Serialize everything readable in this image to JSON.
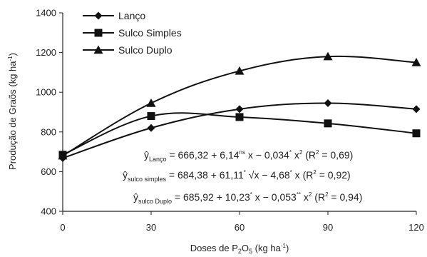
{
  "chart_data": {
    "type": "line",
    "xlabel_main": "Doses de P",
    "xlabel_sub1": "2",
    "xlabel_mid": "O",
    "xlabel_sub2": "5",
    "xlabel_unit": " (kg ha",
    "xlabel_unit_sup": "-1",
    "xlabel_close": ")",
    "ylabel_main": "Produção de Graõs (kg ha",
    "ylabel_sup": "-1",
    "ylabel_close": ")",
    "xlim": [
      0,
      120
    ],
    "ylim": [
      400,
      1400
    ],
    "xticks": [
      "0",
      "30",
      "60",
      "90",
      "120"
    ],
    "yticks": [
      "400",
      "600",
      "800",
      "1000",
      "1200",
      "1400"
    ],
    "legend_position": "top-left",
    "series": [
      {
        "name": "Lanço",
        "marker": "diamond",
        "x": [
          0,
          30,
          60,
          90,
          120
        ],
        "y": [
          668,
          820,
          915,
          945,
          915
        ]
      },
      {
        "name": "Sulco Simples",
        "marker": "square",
        "x": [
          0,
          30,
          60,
          90,
          120
        ],
        "y": [
          685,
          880,
          875,
          843,
          793
        ]
      },
      {
        "name": "Sulco Duplo",
        "marker": "triangle",
        "x": [
          0,
          30,
          60,
          90,
          120
        ],
        "y": [
          680,
          945,
          1107,
          1180,
          1150
        ]
      }
    ],
    "equations": [
      {
        "y": "ŷ",
        "sub": "Lanço",
        "body": [
          {
            "t": " = 666,32 + 6,14"
          },
          {
            "t": "ns",
            "sup": true
          },
          {
            "t": " x − 0,034"
          },
          {
            "t": "*",
            "sup": true
          },
          {
            "t": " x"
          },
          {
            "t": "2",
            "sup": true
          },
          {
            "t": " (R"
          },
          {
            "t": "2",
            "sup": true
          },
          {
            "t": " = 0,69)"
          }
        ]
      },
      {
        "y": "ŷ",
        "sub": "sulco simples",
        "body": [
          {
            "t": " = 684,38 + 61,11"
          },
          {
            "t": "*",
            "sup": true
          },
          {
            "t": " √x − 4,68"
          },
          {
            "t": "*",
            "sup": true
          },
          {
            "t": " x (R"
          },
          {
            "t": "2",
            "sup": true
          },
          {
            "t": " = 0,92)"
          }
        ]
      },
      {
        "y": "ŷ",
        "sub": "sulco Duplo",
        "body": [
          {
            "t": " = 685,92 + 10,23"
          },
          {
            "t": "*",
            "sup": true
          },
          {
            "t": " x − 0,053"
          },
          {
            "t": "**",
            "sup": true
          },
          {
            "t": " x"
          },
          {
            "t": "2",
            "sup": true
          },
          {
            "t": " (R"
          },
          {
            "t": "2",
            "sup": true
          },
          {
            "t": " = 0,94)"
          }
        ]
      }
    ]
  }
}
